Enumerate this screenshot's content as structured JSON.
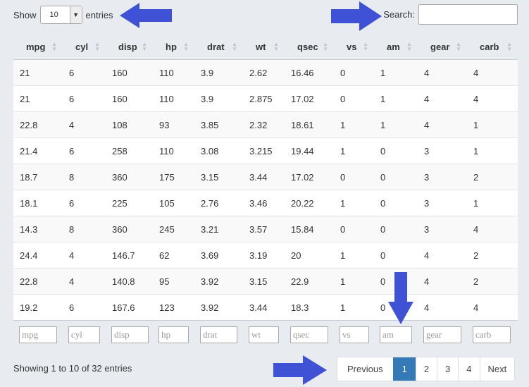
{
  "length_menu": {
    "prefix": "Show",
    "value": "10",
    "suffix": "entries"
  },
  "search": {
    "label": "Search:",
    "value": ""
  },
  "columns": [
    "mpg",
    "cyl",
    "disp",
    "hp",
    "drat",
    "wt",
    "qsec",
    "vs",
    "am",
    "gear",
    "carb"
  ],
  "rows": [
    [
      "21",
      "6",
      "160",
      "110",
      "3.9",
      "2.62",
      "16.46",
      "0",
      "1",
      "4",
      "4"
    ],
    [
      "21",
      "6",
      "160",
      "110",
      "3.9",
      "2.875",
      "17.02",
      "0",
      "1",
      "4",
      "4"
    ],
    [
      "22.8",
      "4",
      "108",
      "93",
      "3.85",
      "2.32",
      "18.61",
      "1",
      "1",
      "4",
      "1"
    ],
    [
      "21.4",
      "6",
      "258",
      "110",
      "3.08",
      "3.215",
      "19.44",
      "1",
      "0",
      "3",
      "1"
    ],
    [
      "18.7",
      "8",
      "360",
      "175",
      "3.15",
      "3.44",
      "17.02",
      "0",
      "0",
      "3",
      "2"
    ],
    [
      "18.1",
      "6",
      "225",
      "105",
      "2.76",
      "3.46",
      "20.22",
      "1",
      "0",
      "3",
      "1"
    ],
    [
      "14.3",
      "8",
      "360",
      "245",
      "3.21",
      "3.57",
      "15.84",
      "0",
      "0",
      "3",
      "4"
    ],
    [
      "24.4",
      "4",
      "146.7",
      "62",
      "3.69",
      "3.19",
      "20",
      "1",
      "0",
      "4",
      "2"
    ],
    [
      "22.8",
      "4",
      "140.8",
      "95",
      "3.92",
      "3.15",
      "22.9",
      "1",
      "0",
      "4",
      "2"
    ],
    [
      "19.2",
      "6",
      "167.6",
      "123",
      "3.92",
      "3.44",
      "18.3",
      "1",
      "0",
      "4",
      "4"
    ]
  ],
  "filters": [
    "mpg",
    "cyl",
    "disp",
    "hp",
    "drat",
    "wt",
    "qsec",
    "vs",
    "am",
    "gear",
    "carb"
  ],
  "info": "Showing 1 to 10 of 32 entries",
  "pagination": {
    "previous": "Previous",
    "pages": [
      "1",
      "2",
      "3",
      "4"
    ],
    "active": "1",
    "next": "Next"
  },
  "colors": {
    "accent": "#337ab7",
    "arrow": "#3f51d4",
    "background": "#e8ecf1"
  },
  "icons": [
    "sort-icon",
    "chevron-down-icon",
    "arrow-icon"
  ]
}
